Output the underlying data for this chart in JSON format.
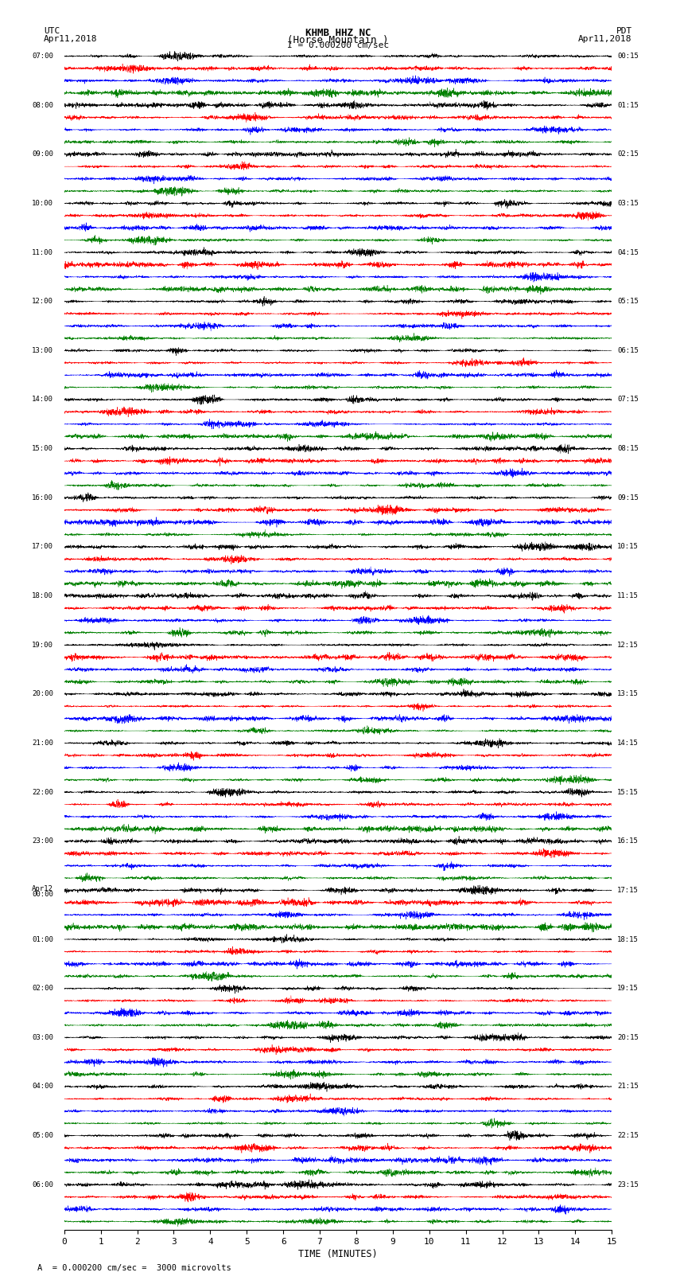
{
  "title_line1": "KHMB HHZ NC",
  "title_line2": "(Horse Mountain )",
  "title_line3": "I = 0.000200 cm/sec",
  "left_header_line1": "UTC",
  "left_header_line2": "Apr11,2018",
  "right_header_line1": "PDT",
  "right_header_line2": "Apr11,2018",
  "footer": "= 0.000200 cm/sec =  3000 microvolts",
  "xlabel": "TIME (MINUTES)",
  "xticks": [
    0,
    1,
    2,
    3,
    4,
    5,
    6,
    7,
    8,
    9,
    10,
    11,
    12,
    13,
    14,
    15
  ],
  "time_per_row_minutes": 15,
  "num_groups": 24,
  "traces_per_group": 4,
  "colors_per_group": [
    "black",
    "red",
    "blue",
    "green"
  ],
  "left_labels_utc": [
    "07:00",
    "08:00",
    "09:00",
    "10:00",
    "11:00",
    "12:00",
    "13:00",
    "14:00",
    "15:00",
    "16:00",
    "17:00",
    "18:00",
    "19:00",
    "20:00",
    "21:00",
    "22:00",
    "23:00",
    "Apr12\n00:00",
    "01:00",
    "02:00",
    "03:00",
    "04:00",
    "05:00",
    "06:00"
  ],
  "right_labels_pdt": [
    "00:15",
    "01:15",
    "02:15",
    "03:15",
    "04:15",
    "05:15",
    "06:15",
    "07:15",
    "08:15",
    "09:15",
    "10:15",
    "11:15",
    "12:15",
    "13:15",
    "14:15",
    "15:15",
    "16:15",
    "17:15",
    "18:15",
    "19:15",
    "20:15",
    "21:15",
    "22:15",
    "23:15"
  ],
  "background_color": "white",
  "wave_amplitude": 0.42,
  "wave_freq_base": 25.0,
  "seed": 42,
  "samples_per_row": 4000,
  "linewidth": 0.35
}
